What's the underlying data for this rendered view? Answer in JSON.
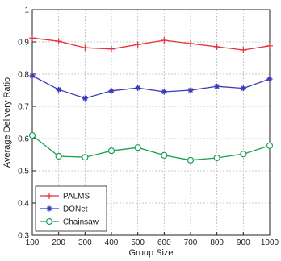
{
  "chart_data": {
    "type": "line",
    "xlabel": "Group Size",
    "ylabel": "Average Delivery Ratio",
    "x": [
      100,
      200,
      300,
      400,
      500,
      600,
      700,
      800,
      900,
      1000
    ],
    "xlim": [
      100,
      1000
    ],
    "ylim": [
      0.3,
      1.0
    ],
    "xticks": [
      "100",
      "200",
      "300",
      "400",
      "500",
      "600",
      "700",
      "800",
      "900",
      "1000"
    ],
    "yticks": [
      "0.3",
      "0.4",
      "0.5",
      "0.6",
      "0.7",
      "0.8",
      "0.9",
      "1"
    ],
    "grid": true,
    "legend_position": "bottom-left",
    "series": [
      {
        "name": "PALMS",
        "color": "#e8303a",
        "marker": "plus",
        "values": [
          0.912,
          0.902,
          0.882,
          0.878,
          0.892,
          0.905,
          0.895,
          0.885,
          0.875,
          0.888
        ]
      },
      {
        "name": "DONet",
        "color": "#3a3ab8",
        "marker": "star",
        "values": [
          0.795,
          0.752,
          0.725,
          0.748,
          0.757,
          0.745,
          0.75,
          0.762,
          0.756,
          0.785
        ]
      },
      {
        "name": "Chainsaw",
        "color": "#1aa055",
        "marker": "circle",
        "values": [
          0.61,
          0.545,
          0.542,
          0.562,
          0.572,
          0.548,
          0.533,
          0.54,
          0.552,
          0.578
        ]
      }
    ]
  }
}
